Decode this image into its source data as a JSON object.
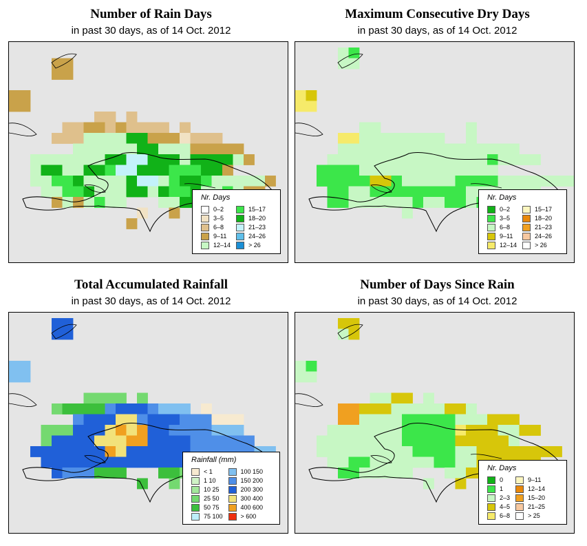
{
  "palettes": {
    "rain_days": [
      "#ffffff",
      "#f1e2c4",
      "#dfc08c",
      "#c9a24a",
      "#c7f7c4",
      "#3ce64a",
      "#11b218",
      "#c3f2fa",
      "#5fbfea",
      "#1b8fd6"
    ],
    "dry_days": [
      "#11b218",
      "#3ce64a",
      "#c7f7c4",
      "#d7c60a",
      "#f6ea6a",
      "#fcf6bf",
      "#e9880b",
      "#f0a020",
      "#f7c8a0",
      "#ffffff"
    ],
    "rainfall": [
      "#f7ead0",
      "#cff3c6",
      "#a3e89c",
      "#74d970",
      "#3cbf3c",
      "#bdeefa",
      "#80c0f0",
      "#4f8fe8",
      "#2060d8",
      "#f2e27a",
      "#f0a020",
      "#ee3010"
    ],
    "since_rain": [
      "#11b218",
      "#3ce64a",
      "#c7f7c4",
      "#d7c60a",
      "#f6ea6a",
      "#fcf6bf",
      "#e9880b",
      "#f0a020",
      "#f7c8a0",
      "#ffffff"
    ]
  },
  "panels": [
    {
      "id": "rain_days",
      "title": "Number of Rain Days",
      "subtitle": "in past 30 days, as of  14 Oct. 2012",
      "legend_title": "Nr. Days",
      "legend_items": [
        {
          "label": "0–2",
          "color": "#ffffff"
        },
        {
          "label": "3–5",
          "color": "#f1e2c4"
        },
        {
          "label": "6–8",
          "color": "#dfc08c"
        },
        {
          "label": "9–11",
          "color": "#c9a24a"
        },
        {
          "label": "12–14",
          "color": "#c7f7c4"
        },
        {
          "label": "15–17",
          "color": "#3ce64a"
        },
        {
          "label": "18–20",
          "color": "#11b218"
        },
        {
          "label": "21–23",
          "color": "#c3f2fa"
        },
        {
          "label": "24–26",
          "color": "#5fbfea"
        },
        {
          "label": "> 26",
          "color": "#1b8fd6"
        }
      ],
      "grid": [
        "..........................",
        "....33.....................",
        "....33..................",
        ".........................",
        "33.........................",
        "33........................",
        "........22.2...........",
        ".....2233232222.2........",
        "....2224444663331222.......",
        "......4444446644433333.......",
        "..444444466776664666643.....",
        "..4664466577666555663.........",
        "..44556444467745665444443......",
        "...445564446646556445433.....",
        "....3434544...4466666..4.....",
        "............1..3.............",
        "...........3..........."
      ]
    },
    {
      "id": "dry_days",
      "title": "Maximum Consecutive Dry Days",
      "subtitle": "in past 30 days, as of  14 Oct. 2012",
      "legend_title": "Nr. Days",
      "legend_items": [
        {
          "label": "0–2",
          "color": "#11b218"
        },
        {
          "label": "3–5",
          "color": "#3ce64a"
        },
        {
          "label": "6–8",
          "color": "#c7f7c4"
        },
        {
          "label": "9–11",
          "color": "#d7c60a"
        },
        {
          "label": "12–14",
          "color": "#f6ea6a"
        },
        {
          "label": "15–17",
          "color": "#fcf6bf"
        },
        {
          "label": "18–20",
          "color": "#e9880b"
        },
        {
          "label": "21–23",
          "color": "#f0a020"
        },
        {
          "label": "24–26",
          "color": "#f7c8a0"
        },
        {
          "label": "> 26",
          "color": "#ffffff"
        }
      ],
      "grid": [
        "....21....................",
        "....22....................",
        "..........................",
        "..........................",
        "43........................",
        "44........................",
        "..........................",
        "......22........2.........",
        "....4422222222..2.........",
        "....22222222222222222.........",
        "...22222222222222212222.....",
        "..11112222222222222...........",
        "..1111133122222111122222222....",
        "...11221111111112222222....",
        "...1122222212211211.2......",
        "..........2...................",
        "..........................."
      ]
    },
    {
      "id": "rainfall",
      "title": "Total Accumulated Rainfall",
      "subtitle": "in past 30 days, as of  14 Oct. 2012",
      "legend_title": "Rainfall (mm)",
      "legend_items": [
        {
          "label": "< 1",
          "color": "#f7ead0"
        },
        {
          "label": "1   10",
          "color": "#cff3c6"
        },
        {
          "label": "10   25",
          "color": "#a3e89c"
        },
        {
          "label": "25   50",
          "color": "#74d970"
        },
        {
          "label": "50   75",
          "color": "#3cbf3c"
        },
        {
          "label": "75   100",
          "color": "#bdeefa"
        },
        {
          "label": "100   150",
          "color": "#80c0f0"
        },
        {
          "label": "150   200",
          "color": "#4f8fe8"
        },
        {
          "label": "200   300",
          "color": "#2060d8"
        },
        {
          "label": "300   400",
          "color": "#f2e27a"
        },
        {
          "label": "400   600",
          "color": "#f0a020"
        },
        {
          "label": "> 600",
          "color": "#ee3010"
        }
      ],
      "grid": [
        "....88....................",
        "....88....................",
        "..........................",
        "..........................",
        "66........................",
        "66........................",
        "..........................",
        ".......3333.3.............",
        "....3444478887666.0.......",
        "......7888997888777000......",
        "...3338889A9A887777666.......",
        "...38888999AA8888777777........",
        "..8888888A988888877777766......",
        "...8888888888888877777.....",
        "....8777444...4433333..3.....",
        "............4..3.............",
        "..........................."
      ]
    },
    {
      "id": "since_rain",
      "title": "Number of Days Since Rain",
      "subtitle": "in past 30 days, as of  14 Oct. 2012",
      "legend_title": "Nr. Days",
      "legend_items": [
        {
          "label": "0",
          "color": "#11b218"
        },
        {
          "label": "1",
          "color": "#3ce64a"
        },
        {
          "label": "2–3",
          "color": "#c7f7c4"
        },
        {
          "label": "4–5",
          "color": "#d7c60a"
        },
        {
          "label": "6–8",
          "color": "#f6ea6a"
        },
        {
          "label": "9–11",
          "color": "#fcf6bf"
        },
        {
          "label": "12–14",
          "color": "#e9880b"
        },
        {
          "label": "15–20",
          "color": "#f0a020"
        },
        {
          "label": "21–25",
          "color": "#f7c8a0"
        },
        {
          "label": "> 25",
          "color": "#ffffff"
        }
      ],
      "grid": [
        "....33....................",
        "....23....................",
        "..........................",
        "..........................",
        "21........................",
        "22........................",
        "..........................",
        ".......2233.2.............",
        "....7733322222332.........",
        "....77222211111222333.........",
        "...22222221111143332233.....",
        "..2222222211111333332.........",
        "..22222222211112233333333......",
        "...22112222221122333333....",
        "....1122222...2233333..3.....",
        "............2..3.............",
        "..........................."
      ]
    }
  ]
}
